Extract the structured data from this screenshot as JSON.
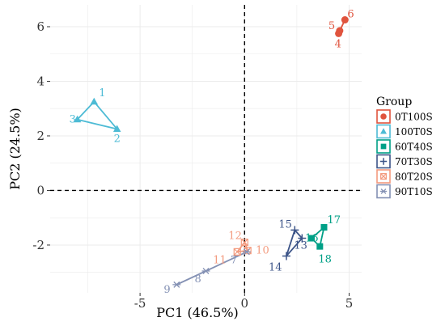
{
  "chart_data": {
    "type": "scatter",
    "xlabel": "PC1 (46.5%)",
    "ylabel": "PC2 (24.5%)",
    "xlim": [
      -9.3,
      5.6
    ],
    "ylim": [
      -3.75,
      6.8
    ],
    "xticks": [
      -5,
      0,
      5
    ],
    "yticks": [
      -2,
      0,
      2,
      4,
      6
    ],
    "grid": true,
    "reference_lines": {
      "x": 0,
      "y": 0,
      "style": "dashed"
    },
    "legend": {
      "title": "Group",
      "placement": "right"
    },
    "series": [
      {
        "name": "0T100S",
        "color": "#e0543e",
        "marker": "circle",
        "points": [
          {
            "label": "4",
            "x": 4.5,
            "y": 5.75
          },
          {
            "label": "5",
            "x": 4.55,
            "y": 5.85
          },
          {
            "label": "6",
            "x": 4.8,
            "y": 6.25
          }
        ]
      },
      {
        "name": "100T0S",
        "color": "#4dbbd5",
        "marker": "triangle",
        "points": [
          {
            "label": "1",
            "x": -7.2,
            "y": 3.25
          },
          {
            "label": "2",
            "x": -6.1,
            "y": 2.25
          },
          {
            "label": "3",
            "x": -8.0,
            "y": 2.6
          }
        ]
      },
      {
        "name": "60T40S",
        "color": "#00a087",
        "marker": "square",
        "points": [
          {
            "label": "16",
            "x": 3.2,
            "y": -1.75
          },
          {
            "label": "17",
            "x": 3.8,
            "y": -1.35
          },
          {
            "label": "18",
            "x": 3.6,
            "y": -2.05
          }
        ]
      },
      {
        "name": "70T30S",
        "color": "#3c5488",
        "marker": "plus",
        "points": [
          {
            "label": "13",
            "x": 2.75,
            "y": -1.75
          },
          {
            "label": "14",
            "x": 2.0,
            "y": -2.4
          },
          {
            "label": "15",
            "x": 2.4,
            "y": -1.45
          }
        ]
      },
      {
        "name": "80T20S",
        "color": "#f39b7f",
        "marker": "square-x",
        "points": [
          {
            "label": "10",
            "x": 0.15,
            "y": -2.2
          },
          {
            "label": "11",
            "x": -0.35,
            "y": -2.25
          },
          {
            "label": "12",
            "x": 0.0,
            "y": -1.9
          }
        ]
      },
      {
        "name": "90T10S",
        "color": "#8491b4",
        "marker": "asterisk",
        "points": [
          {
            "label": "7",
            "x": 0.1,
            "y": -2.25
          },
          {
            "label": "8",
            "x": -1.85,
            "y": -2.95
          },
          {
            "label": "9",
            "x": -3.25,
            "y": -3.45
          }
        ]
      }
    ]
  }
}
